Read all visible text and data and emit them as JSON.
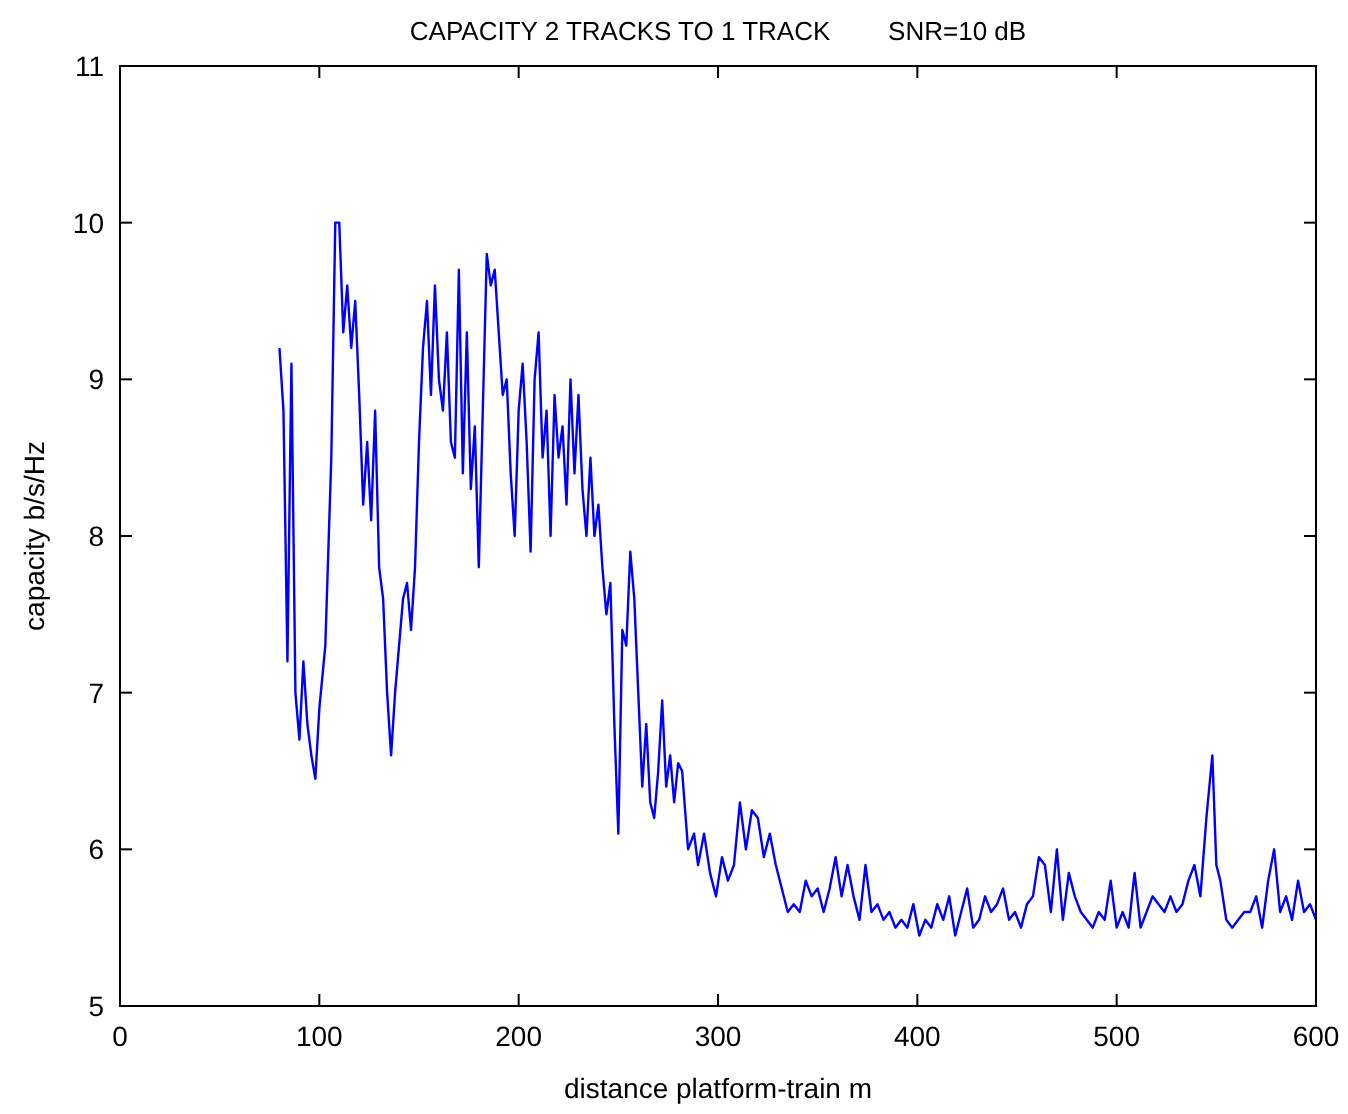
{
  "chart_data": {
    "type": "line",
    "title": "CAPACITY 2 TRACKS TO 1 TRACK        SNR=10 dB",
    "xlabel": "distance platform-train m",
    "ylabel": "capacity b/s/Hz",
    "xlim": [
      0,
      600
    ],
    "xticks": [
      0,
      100,
      200,
      300,
      400,
      500,
      600
    ],
    "ylim": [
      5,
      11
    ],
    "yticks": [
      5,
      6,
      7,
      8,
      9,
      10,
      11
    ],
    "grid": false,
    "marker": "none",
    "line_style": "solid",
    "series": [
      {
        "color": "#0000ff",
        "x": [
          80,
          82,
          84,
          86,
          88,
          90,
          92,
          94,
          96,
          98,
          100,
          103,
          106,
          108,
          110,
          112,
          114,
          116,
          118,
          120,
          122,
          124,
          126,
          128,
          130,
          132,
          134,
          136,
          138,
          140,
          142,
          144,
          146,
          148,
          150,
          152,
          154,
          156,
          158,
          160,
          162,
          164,
          166,
          168,
          170,
          172,
          174,
          176,
          178,
          180,
          182,
          184,
          186,
          188,
          190,
          192,
          194,
          196,
          198,
          200,
          202,
          204,
          206,
          208,
          210,
          212,
          214,
          216,
          218,
          220,
          222,
          224,
          226,
          228,
          230,
          232,
          234,
          236,
          238,
          240,
          242,
          244,
          246,
          248,
          250,
          252,
          254,
          256,
          258,
          260,
          262,
          264,
          266,
          268,
          270,
          272,
          274,
          276,
          278,
          280,
          282,
          285,
          288,
          290,
          293,
          296,
          299,
          302,
          305,
          308,
          311,
          314,
          317,
          320,
          323,
          326,
          329,
          332,
          335,
          338,
          341,
          344,
          347,
          350,
          353,
          356,
          359,
          362,
          365,
          368,
          371,
          374,
          377,
          380,
          383,
          386,
          389,
          392,
          395,
          398,
          401,
          404,
          407,
          410,
          413,
          416,
          419,
          422,
          425,
          428,
          431,
          434,
          437,
          440,
          443,
          446,
          449,
          452,
          455,
          458,
          461,
          464,
          467,
          470,
          473,
          476,
          479,
          482,
          485,
          488,
          491,
          494,
          497,
          500,
          503,
          506,
          509,
          512,
          515,
          518,
          521,
          524,
          527,
          530,
          533,
          536,
          539,
          542,
          545,
          548,
          550,
          552,
          555,
          558,
          561,
          564,
          567,
          570,
          573,
          576,
          579,
          582,
          585,
          588,
          591,
          594,
          597,
          600
        ],
        "values": [
          9.2,
          8.8,
          7.2,
          9.1,
          7.0,
          6.7,
          7.2,
          6.8,
          6.6,
          6.45,
          6.9,
          7.3,
          8.5,
          10.0,
          10.0,
          9.3,
          9.6,
          9.2,
          9.5,
          8.9,
          8.2,
          8.6,
          8.1,
          8.8,
          7.8,
          7.6,
          7.0,
          6.6,
          7.0,
          7.3,
          7.6,
          7.7,
          7.4,
          7.8,
          8.6,
          9.2,
          9.5,
          8.9,
          9.6,
          9.0,
          8.8,
          9.3,
          8.6,
          8.5,
          9.7,
          8.4,
          9.3,
          8.3,
          8.7,
          7.8,
          8.8,
          9.8,
          9.6,
          9.7,
          9.3,
          8.9,
          9.0,
          8.4,
          8.0,
          8.8,
          9.1,
          8.6,
          7.9,
          9.0,
          9.3,
          8.5,
          8.8,
          8.0,
          8.9,
          8.5,
          8.7,
          8.2,
          9.0,
          8.4,
          8.9,
          8.3,
          8.0,
          8.5,
          8.0,
          8.2,
          7.8,
          7.5,
          7.7,
          6.8,
          6.1,
          7.4,
          7.3,
          7.9,
          7.6,
          7.0,
          6.4,
          6.8,
          6.3,
          6.2,
          6.5,
          6.95,
          6.4,
          6.6,
          6.3,
          6.55,
          6.5,
          6.0,
          6.1,
          5.9,
          6.1,
          5.85,
          5.7,
          5.95,
          5.8,
          5.9,
          6.3,
          6.0,
          6.25,
          6.2,
          5.95,
          6.1,
          5.9,
          5.75,
          5.6,
          5.65,
          5.6,
          5.8,
          5.7,
          5.75,
          5.6,
          5.75,
          5.95,
          5.7,
          5.9,
          5.7,
          5.55,
          5.9,
          5.6,
          5.65,
          5.55,
          5.6,
          5.5,
          5.55,
          5.5,
          5.65,
          5.45,
          5.55,
          5.5,
          5.65,
          5.55,
          5.7,
          5.45,
          5.6,
          5.75,
          5.5,
          5.55,
          5.7,
          5.6,
          5.65,
          5.75,
          5.55,
          5.6,
          5.5,
          5.65,
          5.7,
          5.95,
          5.9,
          5.6,
          6.0,
          5.55,
          5.85,
          5.7,
          5.6,
          5.55,
          5.5,
          5.6,
          5.55,
          5.8,
          5.5,
          5.6,
          5.5,
          5.85,
          5.5,
          5.6,
          5.7,
          5.65,
          5.6,
          5.7,
          5.6,
          5.65,
          5.8,
          5.9,
          5.7,
          6.2,
          6.6,
          5.9,
          5.8,
          5.55,
          5.5,
          5.55,
          5.6,
          5.6,
          5.7,
          5.5,
          5.8,
          6.0,
          5.6,
          5.7,
          5.55,
          5.8,
          5.6,
          5.65,
          5.55
        ]
      }
    ]
  }
}
